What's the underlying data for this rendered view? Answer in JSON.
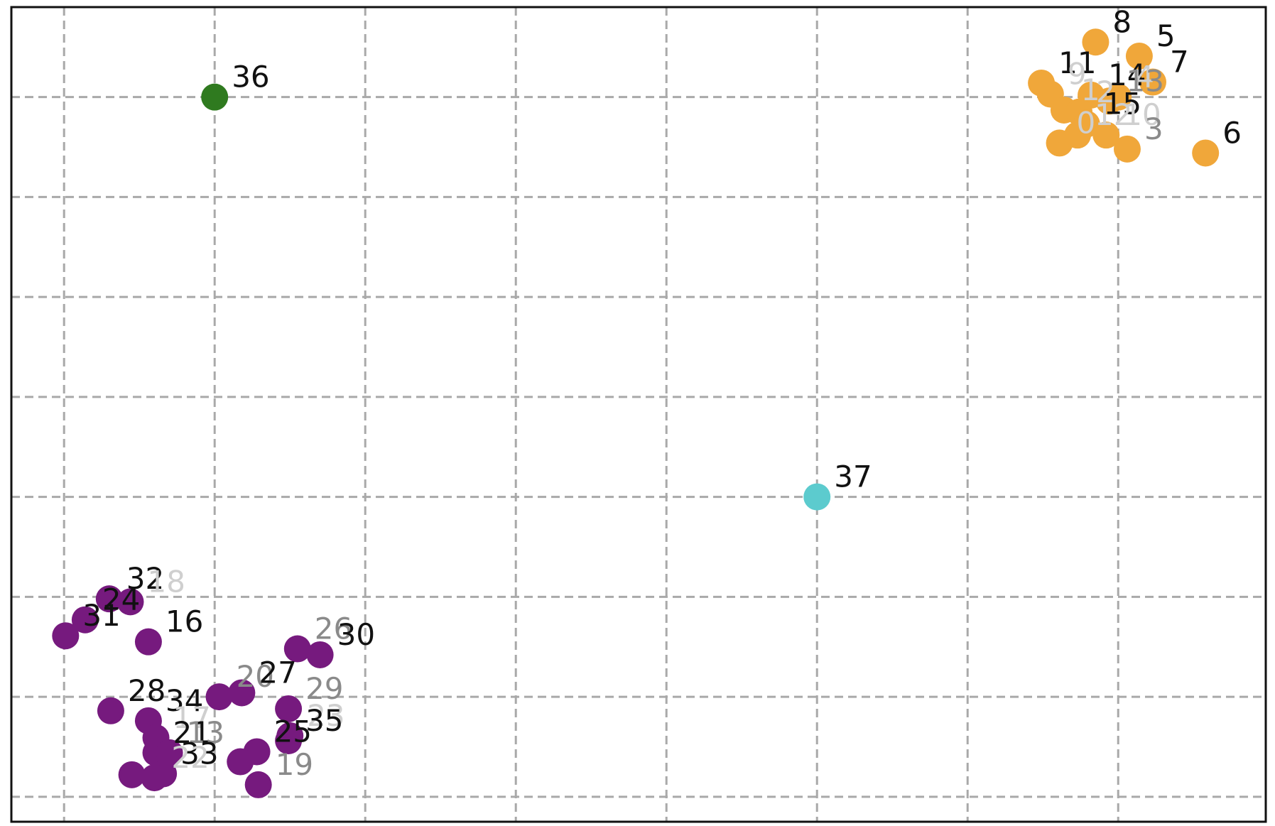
{
  "chart_data": {
    "type": "scatter",
    "title": "",
    "xlabel": "",
    "ylabel": "",
    "grid": true,
    "legend": "none",
    "xlim": [
      -0.35,
      7.98
    ],
    "ylim": [
      -0.25,
      7.9
    ],
    "xticks": [
      0,
      1,
      2,
      3,
      4,
      5,
      6,
      7
    ],
    "yticks": [
      0,
      1,
      2,
      3,
      4,
      5,
      6,
      7
    ],
    "clusters": [
      {
        "cluster": "orange",
        "color": "#f0a73a"
      },
      {
        "cluster": "purple",
        "color": "#761a7e"
      },
      {
        "cluster": "green",
        "color": "#2f7a1f"
      },
      {
        "cluster": "cyan",
        "color": "#5ccbce"
      }
    ],
    "points": [
      {
        "label": "8",
        "x": 6.85,
        "y": 7.55,
        "cluster": "orange",
        "label_shade": "dark"
      },
      {
        "label": "5",
        "x": 7.14,
        "y": 7.41,
        "cluster": "orange",
        "label_shade": "dark"
      },
      {
        "label": "7",
        "x": 7.23,
        "y": 7.15,
        "cluster": "orange",
        "label_shade": "dark"
      },
      {
        "label": "11",
        "x": 6.49,
        "y": 7.14,
        "cluster": "orange",
        "label_shade": "dark"
      },
      {
        "label": "9",
        "x": 6.55,
        "y": 7.03,
        "cluster": "orange",
        "label_shade": "light"
      },
      {
        "label": "14",
        "x": 6.82,
        "y": 7.02,
        "cluster": "orange",
        "label_shade": "dark"
      },
      {
        "label": "4",
        "x": 7.0,
        "y": 7.0,
        "cluster": "orange",
        "label_shade": "light"
      },
      {
        "label": "13",
        "x": 6.94,
        "y": 6.96,
        "cluster": "orange",
        "label_shade": "mid"
      },
      {
        "label": "1",
        "x": 6.64,
        "y": 6.87,
        "cluster": "orange",
        "label_shade": "light"
      },
      {
        "label": "2",
        "x": 6.74,
        "y": 6.85,
        "cluster": "orange",
        "label_shade": "light"
      },
      {
        "label": "15",
        "x": 6.79,
        "y": 6.73,
        "cluster": "orange",
        "label_shade": "dark"
      },
      {
        "label": "10",
        "x": 6.92,
        "y": 6.62,
        "cluster": "orange",
        "label_shade": "light"
      },
      {
        "label": "12",
        "x": 6.73,
        "y": 6.62,
        "cluster": "orange",
        "label_shade": "light"
      },
      {
        "label": "3",
        "x": 7.06,
        "y": 6.48,
        "cluster": "orange",
        "label_shade": "mid"
      },
      {
        "label": "6",
        "x": 7.58,
        "y": 6.44,
        "cluster": "orange",
        "label_shade": "dark"
      },
      {
        "label": "0",
        "x": 6.61,
        "y": 6.54,
        "cluster": "orange",
        "label_shade": "light"
      },
      {
        "label": "36",
        "x": 1.0,
        "y": 7.0,
        "cluster": "green",
        "label_shade": "dark"
      },
      {
        "label": "37",
        "x": 5.0,
        "y": 3.0,
        "cluster": "cyan",
        "label_shade": "dark"
      },
      {
        "label": "32",
        "x": 0.3,
        "y": 1.98,
        "cluster": "purple",
        "label_shade": "dark"
      },
      {
        "label": "18",
        "x": 0.44,
        "y": 1.95,
        "cluster": "purple",
        "label_shade": "light"
      },
      {
        "label": "24",
        "x": 0.14,
        "y": 1.77,
        "cluster": "purple",
        "label_shade": "dark"
      },
      {
        "label": "31",
        "x": 0.01,
        "y": 1.61,
        "cluster": "purple",
        "label_shade": "dark"
      },
      {
        "label": "16",
        "x": 0.56,
        "y": 1.55,
        "cluster": "purple",
        "label_shade": "dark"
      },
      {
        "label": "26",
        "x": 1.55,
        "y": 1.48,
        "cluster": "purple",
        "label_shade": "mid"
      },
      {
        "label": "30",
        "x": 1.7,
        "y": 1.42,
        "cluster": "purple",
        "label_shade": "dark"
      },
      {
        "label": "20",
        "x": 1.03,
        "y": 1.0,
        "cluster": "purple",
        "label_shade": "mid"
      },
      {
        "label": "27",
        "x": 1.18,
        "y": 1.04,
        "cluster": "purple",
        "label_shade": "dark"
      },
      {
        "label": "29",
        "x": 1.49,
        "y": 0.88,
        "cluster": "purple",
        "label_shade": "mid"
      },
      {
        "label": "28",
        "x": 0.31,
        "y": 0.86,
        "cluster": "purple",
        "label_shade": "dark"
      },
      {
        "label": "34",
        "x": 0.56,
        "y": 0.76,
        "cluster": "purple",
        "label_shade": "dark"
      },
      {
        "label": "23",
        "x": 1.5,
        "y": 0.61,
        "cluster": "purple",
        "label_shade": "light"
      },
      {
        "label": "35",
        "x": 1.49,
        "y": 0.56,
        "cluster": "purple",
        "label_shade": "dark"
      },
      {
        "label": "17",
        "x": 0.61,
        "y": 0.59,
        "cluster": "purple",
        "label_shade": "light"
      },
      {
        "label": "25",
        "x": 1.28,
        "y": 0.45,
        "cluster": "purple",
        "label_shade": "dark"
      },
      {
        "label": "21",
        "x": 0.61,
        "y": 0.44,
        "cluster": "purple",
        "label_shade": "dark"
      },
      {
        "label": "13",
        "x": 0.7,
        "y": 0.44,
        "cluster": "purple",
        "label_shade": "mid"
      },
      {
        "label": "33",
        "x": 0.66,
        "y": 0.23,
        "cluster": "purple",
        "label_shade": "dark"
      },
      {
        "label": "22",
        "x": 0.6,
        "y": 0.19,
        "cluster": "purple",
        "label_shade": "light"
      },
      {
        "label": "19",
        "x": 1.29,
        "y": 0.12,
        "cluster": "purple",
        "label_shade": "mid"
      },
      {
        "label": "",
        "x": 1.17,
        "y": 0.35,
        "cluster": "purple",
        "label_shade": "dark"
      },
      {
        "label": "",
        "x": 0.45,
        "y": 0.22,
        "cluster": "purple",
        "label_shade": "dark"
      }
    ]
  }
}
